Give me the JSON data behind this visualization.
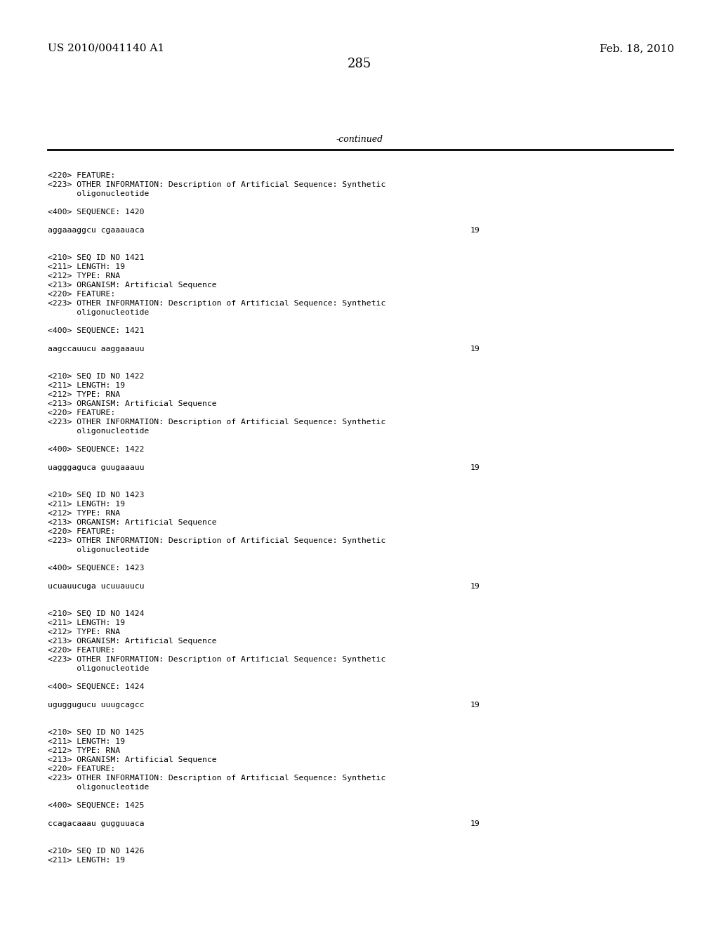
{
  "bg_color": "#ffffff",
  "header_left": "US 2010/0041140 A1",
  "header_right": "Feb. 18, 2010",
  "page_number": "285",
  "continued_text": "-continued",
  "content_lines": [
    {
      "text": "<220> FEATURE:",
      "yf": 245
    },
    {
      "text": "<223> OTHER INFORMATION: Description of Artificial Sequence: Synthetic",
      "yf": 258
    },
    {
      "text": "      oligonucleotide",
      "yf": 271
    },
    {
      "text": "",
      "yf": 284
    },
    {
      "text": "<400> SEQUENCE: 1420",
      "yf": 297
    },
    {
      "text": "",
      "yf": 310
    },
    {
      "text": "aggaaaggcu cgaaauaca",
      "yf": 323,
      "num": "19"
    },
    {
      "text": "",
      "yf": 336
    },
    {
      "text": "",
      "yf": 349
    },
    {
      "text": "<210> SEQ ID NO 1421",
      "yf": 362
    },
    {
      "text": "<211> LENGTH: 19",
      "yf": 375
    },
    {
      "text": "<212> TYPE: RNA",
      "yf": 388
    },
    {
      "text": "<213> ORGANISM: Artificial Sequence",
      "yf": 401
    },
    {
      "text": "<220> FEATURE:",
      "yf": 414
    },
    {
      "text": "<223> OTHER INFORMATION: Description of Artificial Sequence: Synthetic",
      "yf": 427
    },
    {
      "text": "      oligonucleotide",
      "yf": 440
    },
    {
      "text": "",
      "yf": 453
    },
    {
      "text": "<400> SEQUENCE: 1421",
      "yf": 466
    },
    {
      "text": "",
      "yf": 479
    },
    {
      "text": "aagccauucu aaggaaauu",
      "yf": 492,
      "num": "19"
    },
    {
      "text": "",
      "yf": 505
    },
    {
      "text": "",
      "yf": 518
    },
    {
      "text": "<210> SEQ ID NO 1422",
      "yf": 531
    },
    {
      "text": "<211> LENGTH: 19",
      "yf": 544
    },
    {
      "text": "<212> TYPE: RNA",
      "yf": 557
    },
    {
      "text": "<213> ORGANISM: Artificial Sequence",
      "yf": 570
    },
    {
      "text": "<220> FEATURE:",
      "yf": 583
    },
    {
      "text": "<223> OTHER INFORMATION: Description of Artificial Sequence: Synthetic",
      "yf": 596
    },
    {
      "text": "      oligonucleotide",
      "yf": 609
    },
    {
      "text": "",
      "yf": 622
    },
    {
      "text": "<400> SEQUENCE: 1422",
      "yf": 635
    },
    {
      "text": "",
      "yf": 648
    },
    {
      "text": "uagggaguca guugaaauu",
      "yf": 661,
      "num": "19"
    },
    {
      "text": "",
      "yf": 674
    },
    {
      "text": "",
      "yf": 687
    },
    {
      "text": "<210> SEQ ID NO 1423",
      "yf": 700
    },
    {
      "text": "<211> LENGTH: 19",
      "yf": 713
    },
    {
      "text": "<212> TYPE: RNA",
      "yf": 726
    },
    {
      "text": "<213> ORGANISM: Artificial Sequence",
      "yf": 739
    },
    {
      "text": "<220> FEATURE:",
      "yf": 752
    },
    {
      "text": "<223> OTHER INFORMATION: Description of Artificial Sequence: Synthetic",
      "yf": 765
    },
    {
      "text": "      oligonucleotide",
      "yf": 778
    },
    {
      "text": "",
      "yf": 791
    },
    {
      "text": "<400> SEQUENCE: 1423",
      "yf": 804
    },
    {
      "text": "",
      "yf": 817
    },
    {
      "text": "ucuauucuga ucuuauucu",
      "yf": 830,
      "num": "19"
    },
    {
      "text": "",
      "yf": 843
    },
    {
      "text": "",
      "yf": 856
    },
    {
      "text": "<210> SEQ ID NO 1424",
      "yf": 869
    },
    {
      "text": "<211> LENGTH: 19",
      "yf": 882
    },
    {
      "text": "<212> TYPE: RNA",
      "yf": 895
    },
    {
      "text": "<213> ORGANISM: Artificial Sequence",
      "yf": 908
    },
    {
      "text": "<220> FEATURE:",
      "yf": 921
    },
    {
      "text": "<223> OTHER INFORMATION: Description of Artificial Sequence: Synthetic",
      "yf": 934
    },
    {
      "text": "      oligonucleotide",
      "yf": 947
    },
    {
      "text": "",
      "yf": 960
    },
    {
      "text": "<400> SEQUENCE: 1424",
      "yf": 973
    },
    {
      "text": "",
      "yf": 986
    },
    {
      "text": "uguggugucu uuugcagcc",
      "yf": 999,
      "num": "19"
    },
    {
      "text": "",
      "yf": 1012
    },
    {
      "text": "",
      "yf": 1025
    },
    {
      "text": "<210> SEQ ID NO 1425",
      "yf": 1038
    },
    {
      "text": "<211> LENGTH: 19",
      "yf": 1051
    },
    {
      "text": "<212> TYPE: RNA",
      "yf": 1064
    },
    {
      "text": "<213> ORGANISM: Artificial Sequence",
      "yf": 1077
    },
    {
      "text": "<220> FEATURE:",
      "yf": 1090
    },
    {
      "text": "<223> OTHER INFORMATION: Description of Artificial Sequence: Synthetic",
      "yf": 1103
    },
    {
      "text": "      oligonucleotide",
      "yf": 1116
    },
    {
      "text": "",
      "yf": 1129
    },
    {
      "text": "<400> SEQUENCE: 1425",
      "yf": 1142
    },
    {
      "text": "",
      "yf": 1155
    },
    {
      "text": "ccagacaaau gugguuaca",
      "yf": 1168,
      "num": "19"
    },
    {
      "text": "",
      "yf": 1181
    },
    {
      "text": "",
      "yf": 1194
    },
    {
      "text": "<210> SEQ ID NO 1426",
      "yf": 1207
    },
    {
      "text": "<211> LENGTH: 19",
      "yf": 1220
    }
  ]
}
